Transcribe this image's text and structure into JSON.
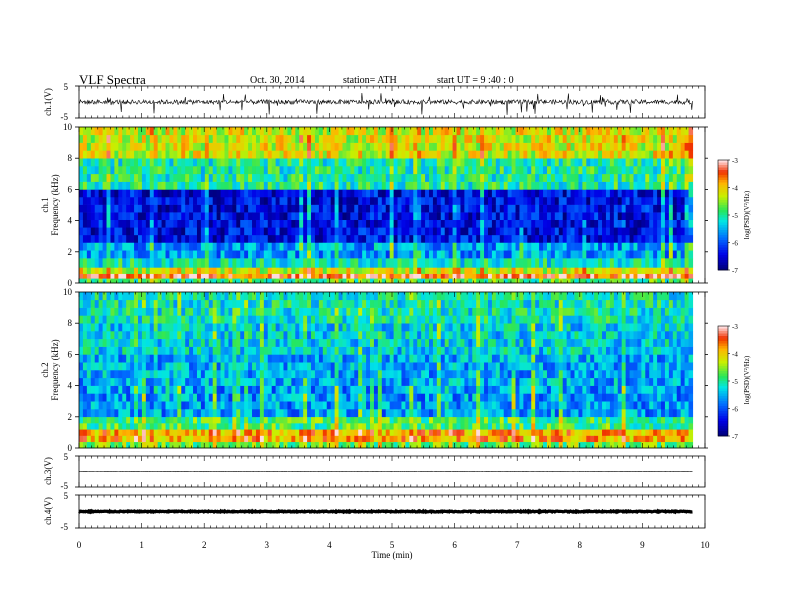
{
  "header": {
    "title": "VLF  Spectra",
    "date": "Oct. 30, 2014",
    "station": "station= ATH",
    "start": "start  UT  =   9  :40 : 0"
  },
  "chart_data": [
    {
      "type": "line",
      "id": "ch1-waveform",
      "ylabel": "ch.1(V)",
      "ylim": [
        -5,
        5
      ],
      "y_ticks": [
        "5",
        "-5"
      ],
      "series": [
        {
          "baseline": 0,
          "noise_amplitude_V": 1.4,
          "spike_amplitude_V": 3.5
        }
      ]
    },
    {
      "type": "heatmap",
      "id": "ch1-spectrogram",
      "ylabel_line1": "ch.1",
      "ylabel_line2": "Frequency  (kHz)",
      "ylim": [
        0,
        10
      ],
      "y_ticks": [
        "0",
        "2",
        "4",
        "6",
        "8",
        "10"
      ],
      "xlim": [
        0,
        10
      ],
      "data_end_min": 9.8,
      "colorbar": {
        "label": "log(PSD)(V²/Hz)",
        "min": -7,
        "max": -3,
        "ticks": [
          "-3",
          "-4",
          "-5",
          "-6",
          "-7"
        ]
      },
      "bands": [
        {
          "f_lo": 0,
          "f_hi": 0.3,
          "logpsd": -4.8
        },
        {
          "f_lo": 0.3,
          "f_hi": 0.6,
          "logpsd": -3.4
        },
        {
          "f_lo": 0.6,
          "f_hi": 1.0,
          "logpsd": -4.2
        },
        {
          "f_lo": 1.0,
          "f_hi": 1.6,
          "logpsd": -5.1
        },
        {
          "f_lo": 1.6,
          "f_hi": 2.6,
          "logpsd": -5.6
        },
        {
          "f_lo": 2.6,
          "f_hi": 6.0,
          "logpsd": -6.4
        },
        {
          "f_lo": 6.0,
          "f_hi": 8.0,
          "logpsd": -5.0
        },
        {
          "f_lo": 8.0,
          "f_hi": 10.0,
          "logpsd": -4.2
        }
      ]
    },
    {
      "type": "heatmap",
      "id": "ch2-spectrogram",
      "ylabel_line1": "ch.2",
      "ylabel_line2": "Frequency  (kHz)",
      "ylim": [
        0,
        10
      ],
      "y_ticks": [
        "0",
        "2",
        "4",
        "6",
        "8",
        "10"
      ],
      "xlim": [
        0,
        10
      ],
      "data_end_min": 9.8,
      "colorbar": {
        "label": "log(PSD)(V²/Hz)",
        "min": -7,
        "max": -3,
        "ticks": [
          "-3",
          "-4",
          "-5",
          "-6",
          "-7"
        ]
      },
      "bands": [
        {
          "f_lo": 0,
          "f_hi": 0.4,
          "logpsd": -4.6
        },
        {
          "f_lo": 0.4,
          "f_hi": 1.2,
          "logpsd": -3.8
        },
        {
          "f_lo": 1.2,
          "f_hi": 2.0,
          "logpsd": -4.8
        },
        {
          "f_lo": 2.0,
          "f_hi": 4.0,
          "logpsd": -5.6
        },
        {
          "f_lo": 4.0,
          "f_hi": 6.0,
          "logpsd": -5.5
        },
        {
          "f_lo": 6.0,
          "f_hi": 8.0,
          "logpsd": -5.3
        },
        {
          "f_lo": 8.0,
          "f_hi": 10.0,
          "logpsd": -5.1
        }
      ]
    },
    {
      "type": "line",
      "id": "ch3-waveform",
      "ylabel": "ch.3(V)",
      "ylim": [
        -5,
        5
      ],
      "y_ticks": [
        "5",
        "-5"
      ],
      "series": [
        {
          "baseline": 0,
          "noise_amplitude_V": 0.15
        }
      ]
    },
    {
      "type": "line",
      "id": "ch4-waveform",
      "ylabel": "ch.4(V)",
      "ylim": [
        -5,
        5
      ],
      "y_ticks": [
        "5",
        "-5"
      ],
      "xlabel": "Time  (min)",
      "x_ticks": [
        "0",
        "1",
        "2",
        "3",
        "4",
        "5",
        "6",
        "7",
        "8",
        "9",
        "10"
      ],
      "series": [
        {
          "baseline": 0,
          "noise_amplitude_V": 0.3
        }
      ]
    }
  ]
}
